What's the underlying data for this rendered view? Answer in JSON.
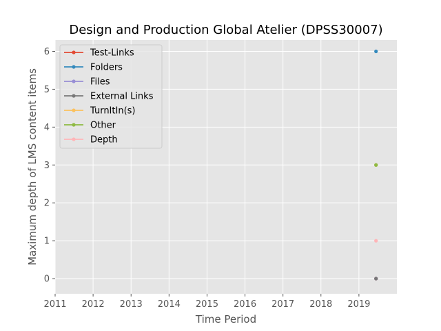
{
  "chart_data": {
    "type": "line",
    "title": "Design and Production Global Atelier (DPSS30007)",
    "xlabel": "Time Period",
    "ylabel": "Maximum depth of LMS content items",
    "xlim": [
      2011,
      2020
    ],
    "ylim": [
      -0.4,
      6.3
    ],
    "x_ticks": [
      "2011",
      "2012",
      "2013",
      "2014",
      "2015",
      "2016",
      "2017",
      "2018",
      "2019"
    ],
    "y_ticks": [
      "0",
      "1",
      "2",
      "3",
      "4",
      "5",
      "6"
    ],
    "grid": true,
    "legend_position": "top-left",
    "series": [
      {
        "name": "Test-Links",
        "color": "#E24A33",
        "points": [
          {
            "x": 2019.45,
            "y": 0
          }
        ]
      },
      {
        "name": "Folders",
        "color": "#348ABD",
        "points": [
          {
            "x": 2019.45,
            "y": 6
          }
        ]
      },
      {
        "name": "Files",
        "color": "#988ED5",
        "points": [
          {
            "x": 2019.45,
            "y": 0
          }
        ]
      },
      {
        "name": "External Links",
        "color": "#777777",
        "points": [
          {
            "x": 2019.45,
            "y": 0
          }
        ]
      },
      {
        "name": "TurnItIn(s)",
        "color": "#FBC15E",
        "points": [
          {
            "x": 2019.45,
            "y": 3
          }
        ]
      },
      {
        "name": "Other",
        "color": "#8EBA42",
        "points": [
          {
            "x": 2019.45,
            "y": 3
          }
        ]
      },
      {
        "name": "Depth",
        "color": "#FFB5B8",
        "points": [
          {
            "x": 2019.45,
            "y": 1
          }
        ]
      }
    ]
  }
}
